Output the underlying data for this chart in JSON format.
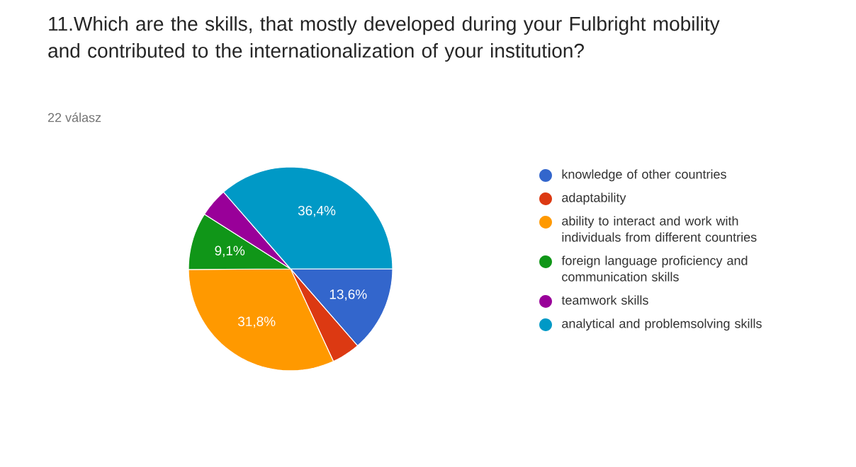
{
  "chart_data": {
    "type": "pie",
    "title": "11.Which are the skills, that mostly developed during your Fulbright mobility and contributed to the internationalization of your institution?",
    "subtitle": "22 válasz",
    "categories": [
      "knowledge of other countries",
      "adaptability",
      "ability to interact and work with individuals from different countries",
      "foreign language proficiency and communication skills",
      "teamwork skills",
      "analytical and problemsolving skills"
    ],
    "values": [
      13.6,
      4.5,
      31.8,
      9.1,
      4.6,
      36.4
    ],
    "colors": [
      "#3366cc",
      "#dc3912",
      "#ff9900",
      "#109618",
      "#990099",
      "#0099c6"
    ],
    "value_labels": [
      "13,6%",
      null,
      "31,8%",
      "9,1%",
      null,
      "36,4%"
    ],
    "legend": "right"
  }
}
